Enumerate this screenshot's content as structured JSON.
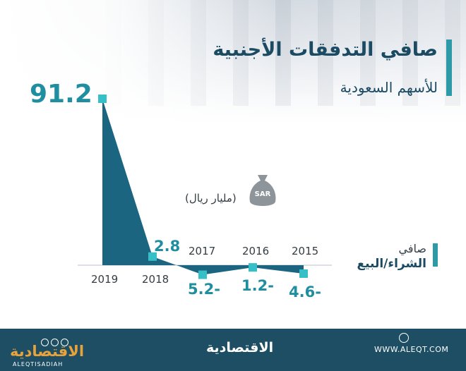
{
  "header": {
    "title": "صافي التدفقات الأجنبية",
    "subtitle": "للأسهم السعودية"
  },
  "unit": {
    "label": "(مليار ريال)",
    "bag_text": "SAR",
    "icon": "money-bag-icon"
  },
  "side_label": {
    "line1": "صافي",
    "line2": "الشراء/البيع"
  },
  "chart_data": {
    "type": "area",
    "categories": [
      "2019",
      "2018",
      "2017",
      "2016",
      "2015"
    ],
    "values": [
      91.2,
      2.8,
      -5.2,
      -1.2,
      -4.6
    ],
    "value_labels": [
      "91.2",
      "2.8",
      "5.2-",
      "1.2-",
      "4.6-"
    ],
    "title": "صافي التدفقات الأجنبية",
    "subtitle": "للأسهم السعودية",
    "ylabel": "(مليار ريال)",
    "ylim": [
      -10,
      95
    ],
    "grid": false,
    "colors": {
      "fill": "#1c6581",
      "marker": "#37bfc8",
      "labels": "#1f8ea0"
    }
  },
  "footer": {
    "logo_left": "الاقتصادية",
    "logo_left_sub": "ALEQTISADIAH",
    "logo_center": "الاقتصادية",
    "website": "WWW.ALEQT.COM",
    "background": "#1d4e63"
  }
}
